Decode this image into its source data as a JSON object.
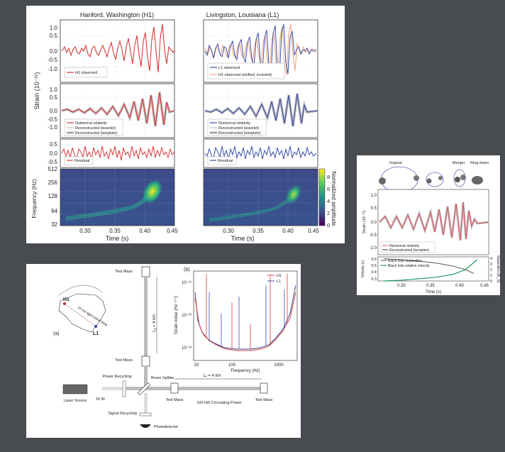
{
  "chart_data": [
    {
      "type": "line",
      "title_left": "Hanford, Washington (H1)",
      "title_right": "Livingston, Louisiana (L1)",
      "ylabel": "Strain (10⁻²¹)",
      "xlabel": "Time (s)",
      "xlim": [
        0.26,
        0.45
      ],
      "xticks": [
        "0.30",
        "0.35",
        "0.40",
        "0.45"
      ],
      "rows": [
        {
          "ylim": [
            -1.0,
            1.0
          ],
          "yticks": [
            "1.0",
            "0.5",
            "0.0",
            "-0.5",
            "-1.0"
          ],
          "legend_left": [
            "H1 observed"
          ],
          "legend_right": [
            "L1 observed",
            "H1 observed (shifted, inverted)"
          ]
        },
        {
          "ylim": [
            -1.0,
            1.0
          ],
          "yticks": [
            "1.0",
            "0.5",
            "0.0",
            "-0.5",
            "-1.0"
          ],
          "legend_left": [
            "Numerical relativity",
            "Reconstructed (wavelet)",
            "Reconstructed (template)"
          ],
          "legend_right": [
            "Numerical relativity",
            "Reconstructed (wavelet)",
            "Reconstructed (template)"
          ]
        },
        {
          "ylim": [
            -0.5,
            0.5
          ],
          "yticks": [
            "0.5",
            "0.0",
            "-0.5"
          ],
          "legend_left": [
            "Residual"
          ],
          "legend_right": [
            "Residual"
          ]
        }
      ],
      "spectrogram": {
        "ylabel": "Frequency (Hz)",
        "yticks": [
          "512",
          "256",
          "128",
          "64",
          "32"
        ],
        "colorbar_label": "Normalized amplitude",
        "colorbar_ticks": [
          "8",
          "6",
          "4",
          "2",
          "0"
        ]
      },
      "colors": {
        "h1": "#d93a3a",
        "l1": "#3b4fa8",
        "gray": "#9a9a9a"
      }
    },
    {
      "type": "line",
      "labels": [
        "Inspiral",
        "Merger",
        "Ring-down"
      ],
      "ylabel": "Strain (10⁻²¹)",
      "yticks": [
        "1.0",
        "0.5",
        "0.0",
        "-0.5",
        "-1.0"
      ],
      "legend": [
        "Numerical relativity",
        "Reconstructed (template)"
      ],
      "lower": {
        "ylabel_left": "Velocity (c)",
        "ylabel_right": "Separation (R_S)",
        "yticks_left": [
          "0.6",
          "0.5",
          "0.4",
          "0.3"
        ],
        "yticks_right": [
          "4",
          "3",
          "2",
          "1",
          "0"
        ],
        "legend": [
          "Black hole separation",
          "Black hole relative velocity"
        ]
      },
      "xticks": [
        "0.30",
        "0.35",
        "0.40",
        "0.45"
      ],
      "xlabel": "Time (s)",
      "xlim": [
        0.26,
        0.45
      ],
      "series": [
        {
          "name": "Black hole separation",
          "x": [
            0.27,
            0.3,
            0.33,
            0.36,
            0.39,
            0.41,
            0.425
          ],
          "values": [
            3.9,
            3.75,
            3.5,
            3.15,
            2.6,
            2.0,
            1.3
          ]
        },
        {
          "name": "Black hole relative velocity",
          "x": [
            0.27,
            0.3,
            0.33,
            0.36,
            0.39,
            0.41,
            0.43
          ],
          "values": [
            0.3,
            0.31,
            0.33,
            0.35,
            0.39,
            0.45,
            0.58
          ]
        }
      ]
    },
    {
      "type": "line",
      "panel_label": "(b)",
      "ylabel": "Strain noise (Hz⁻¹ᐟ²)",
      "yticks": [
        "10⁻²¹",
        "10⁻²²",
        "10⁻²³"
      ],
      "xlabel": "Frequency (Hz)",
      "xticks": [
        "20",
        "100",
        "1000"
      ],
      "xlim": [
        20,
        2000
      ],
      "legend": [
        "H1",
        "L1"
      ]
    }
  ],
  "diagram": {
    "panel_label": "(a)",
    "map_label_h1": "H1",
    "map_label_l1": "L1",
    "map_caption": "10 ms light travel time",
    "test_mass": "Test Mass",
    "ly": "Lᵧ = 4 km",
    "lx": "Lₓ = 4 km",
    "power_recycling": "Power Recycling",
    "beam_splitter": "Beam Splitter",
    "laser_source": "Laser Source",
    "laser_power": "20 W",
    "circulating_power": "100 kW Circulating Power",
    "signal_recycling": "Signal Recycling",
    "photodetector": "Photodetector"
  }
}
